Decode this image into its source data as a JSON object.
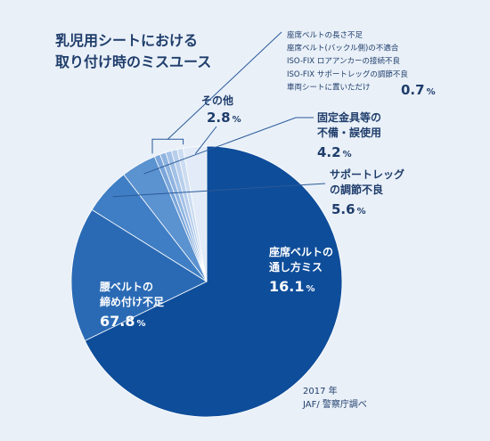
{
  "chart_data": {
    "type": "pie",
    "title": "乳児用シートにおける\n取り付け時のミスユース",
    "source": "2017 年\nJAF/ 警察庁調べ",
    "unit": "%",
    "slices": [
      {
        "label": "腰ベルトの\n締め付け不足",
        "value": 67.8,
        "color": "#0e4d9a"
      },
      {
        "label": "座席ベルトの\n通し方ミス",
        "value": 16.1,
        "color": "#2a6ab5"
      },
      {
        "label": "サポートレッグ\nの調節不良",
        "value": 5.6,
        "color": "#3f7ec4"
      },
      {
        "label": "固定金具等の\n不備・誤使用",
        "value": 4.2,
        "color": "#5b92d0"
      },
      {
        "label": "座席ベルトの長さ不足",
        "value": 0.7,
        "color": "#7aa6da"
      },
      {
        "label": "座席ベルト(バックル側)の不適合",
        "value": 0.7,
        "color": "#8fb4e0"
      },
      {
        "label": "ISO-FIX ロアアンカーの接続不良",
        "value": 0.7,
        "color": "#a3c1e6"
      },
      {
        "label": "ISO-FIX サポートレッグの調節不良",
        "value": 0.7,
        "color": "#b8cfec"
      },
      {
        "label": "車両シートに置いただけ",
        "value": 0.7,
        "color": "#ccdcf1"
      },
      {
        "label": "その他",
        "value": 2.8,
        "color": "#e2ebf7"
      }
    ],
    "small_group_value": 0.7
  }
}
